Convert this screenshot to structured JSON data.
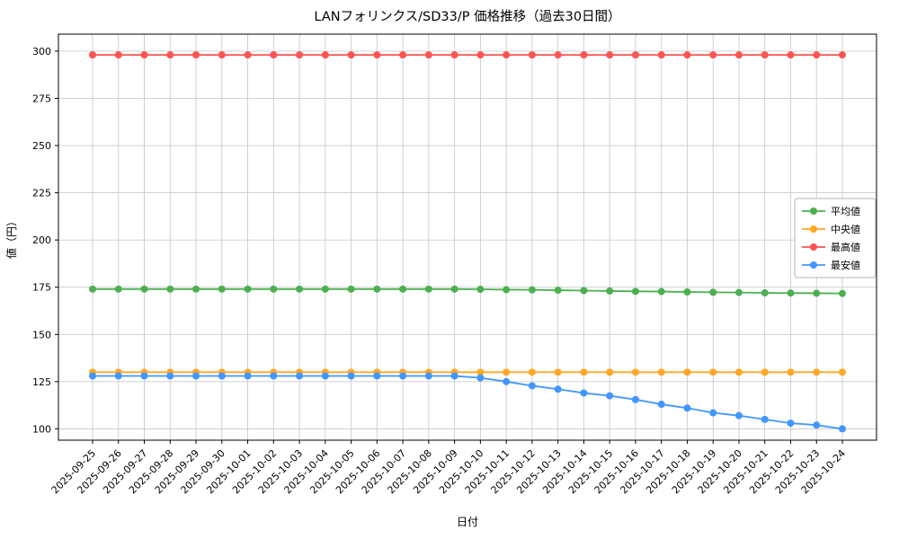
{
  "chart_data": {
    "type": "line",
    "title": "LANフォリンクス/SD33/P 価格推移（過去30日間）",
    "xlabel": "日付",
    "ylabel": "値（円）",
    "ylim": [
      94,
      309
    ],
    "yticks": [
      100,
      125,
      150,
      175,
      200,
      225,
      250,
      275,
      300
    ],
    "grid": true,
    "legend_position": "center right",
    "frame_color": "#000000",
    "grid_color": "#cccccc",
    "categories": [
      "2025-09-25",
      "2025-09-26",
      "2025-09-27",
      "2025-09-28",
      "2025-09-29",
      "2025-09-30",
      "2025-10-01",
      "2025-10-02",
      "2025-10-03",
      "2025-10-04",
      "2025-10-05",
      "2025-10-06",
      "2025-10-07",
      "2025-10-08",
      "2025-10-09",
      "2025-10-10",
      "2025-10-11",
      "2025-10-12",
      "2025-10-13",
      "2025-10-14",
      "2025-10-15",
      "2025-10-16",
      "2025-10-17",
      "2025-10-18",
      "2025-10-19",
      "2025-10-20",
      "2025-10-21",
      "2025-10-22",
      "2025-10-23",
      "2025-10-24"
    ],
    "series": [
      {
        "name": "平均値",
        "color": "#4caf50",
        "values": [
          174,
          174,
          174,
          174,
          174,
          174,
          174,
          174,
          174,
          174,
          174,
          174,
          174,
          174,
          174,
          173.9,
          173.7,
          173.6,
          173.4,
          173.2,
          173,
          172.8,
          172.7,
          172.5,
          172.3,
          172.2,
          172,
          171.9,
          171.8,
          171.7
        ]
      },
      {
        "name": "中央値",
        "color": "#ffa726",
        "values": [
          130,
          130,
          130,
          130,
          130,
          130,
          130,
          130,
          130,
          130,
          130,
          130,
          130,
          130,
          130,
          130,
          130,
          130,
          130,
          130,
          130,
          130,
          130,
          130,
          130,
          130,
          130,
          130,
          130,
          130
        ]
      },
      {
        "name": "最高値",
        "color": "#ff5252",
        "values": [
          298,
          298,
          298,
          298,
          298,
          298,
          298,
          298,
          298,
          298,
          298,
          298,
          298,
          298,
          298,
          298,
          298,
          298,
          298,
          298,
          298,
          298,
          298,
          298,
          298,
          298,
          298,
          298,
          298,
          298
        ]
      },
      {
        "name": "最安値",
        "color": "#4196ff",
        "values": [
          128,
          128,
          128,
          128,
          128,
          128,
          128,
          128,
          128,
          128,
          128,
          128,
          128,
          128,
          128,
          127,
          125,
          122.8,
          121,
          119,
          117.5,
          115.5,
          113,
          111,
          108.5,
          107,
          105,
          103,
          102,
          100
        ]
      }
    ]
  }
}
